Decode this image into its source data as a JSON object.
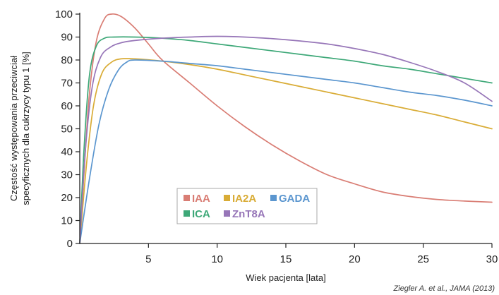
{
  "chart_data": {
    "type": "line",
    "title": "",
    "xlabel": "Wiek pacjenta [lata]",
    "ylabel_lines": [
      "Częstość występowania przeciwciał",
      "specyficznych dla cukrzycy typu 1 [%]"
    ],
    "xlim": [
      0,
      30
    ],
    "ylim": [
      0,
      100
    ],
    "x_ticks": [
      5,
      10,
      15,
      20,
      25,
      30
    ],
    "y_ticks": [
      0,
      10,
      20,
      30,
      40,
      50,
      60,
      70,
      80,
      90,
      100
    ],
    "grid": false,
    "legend_position": "lower-left-center",
    "source": "Ziegler A. et al., JAMA (2013)",
    "series": [
      {
        "name": "IAA",
        "color": "#d97d74",
        "points": [
          [
            0,
            0
          ],
          [
            0.3,
            30
          ],
          [
            0.7,
            65
          ],
          [
            1.2,
            88
          ],
          [
            1.8,
            98
          ],
          [
            2.3,
            100
          ],
          [
            3,
            99
          ],
          [
            4,
            94
          ],
          [
            5,
            87
          ],
          [
            6,
            80
          ],
          [
            8,
            70
          ],
          [
            10,
            60
          ],
          [
            12,
            51
          ],
          [
            14,
            43
          ],
          [
            16,
            36
          ],
          [
            18,
            30
          ],
          [
            20,
            26
          ],
          [
            22,
            22.5
          ],
          [
            24,
            20.5
          ],
          [
            26,
            19.2
          ],
          [
            28,
            18.5
          ],
          [
            30,
            18
          ]
        ]
      },
      {
        "name": "IA2A",
        "color": "#d9ac36",
        "points": [
          [
            0,
            0
          ],
          [
            0.5,
            35
          ],
          [
            1,
            60
          ],
          [
            1.6,
            74
          ],
          [
            2.3,
            79
          ],
          [
            3,
            80.5
          ],
          [
            4,
            80.5
          ],
          [
            6,
            79.5
          ],
          [
            8,
            78
          ],
          [
            10,
            76
          ],
          [
            12,
            73.5
          ],
          [
            14,
            71
          ],
          [
            16,
            68.5
          ],
          [
            18,
            66
          ],
          [
            20,
            63.5
          ],
          [
            22,
            61
          ],
          [
            24,
            58.5
          ],
          [
            26,
            56
          ],
          [
            28,
            53
          ],
          [
            30,
            50
          ]
        ]
      },
      {
        "name": "GADA",
        "color": "#5b96cf",
        "points": [
          [
            0,
            0
          ],
          [
            0.7,
            28
          ],
          [
            1.4,
            52
          ],
          [
            2.1,
            67
          ],
          [
            2.8,
            75.5
          ],
          [
            3.4,
            79
          ],
          [
            4,
            80
          ],
          [
            6,
            79.5
          ],
          [
            8,
            78.5
          ],
          [
            10,
            77.5
          ],
          [
            12,
            76
          ],
          [
            14,
            74.5
          ],
          [
            16,
            73
          ],
          [
            18,
            71.5
          ],
          [
            20,
            70
          ],
          [
            22,
            68
          ],
          [
            24,
            66
          ],
          [
            26,
            64.5
          ],
          [
            28,
            62.5
          ],
          [
            30,
            60
          ]
        ]
      },
      {
        "name": "ICA",
        "color": "#3ea878",
        "points": [
          [
            0,
            0
          ],
          [
            0.3,
            40
          ],
          [
            0.7,
            73
          ],
          [
            1.2,
            86
          ],
          [
            1.8,
            89.5
          ],
          [
            2.5,
            90
          ],
          [
            4,
            90
          ],
          [
            6,
            89.5
          ],
          [
            8,
            88.5
          ],
          [
            10,
            87
          ],
          [
            12,
            85.5
          ],
          [
            14,
            84
          ],
          [
            16,
            82.5
          ],
          [
            18,
            81
          ],
          [
            20,
            79.5
          ],
          [
            22,
            77.5
          ],
          [
            24,
            76
          ],
          [
            26,
            74
          ],
          [
            28,
            72
          ],
          [
            30,
            70
          ]
        ]
      },
      {
        "name": "ZnT8A",
        "color": "#9776b8",
        "points": [
          [
            0,
            0
          ],
          [
            0.4,
            40
          ],
          [
            0.9,
            68
          ],
          [
            1.5,
            81
          ],
          [
            2.2,
            85.5
          ],
          [
            3,
            87.5
          ],
          [
            4,
            88.5
          ],
          [
            6,
            89.5
          ],
          [
            8,
            90
          ],
          [
            10,
            90.3
          ],
          [
            12,
            90
          ],
          [
            14,
            89.3
          ],
          [
            16,
            88.3
          ],
          [
            18,
            87
          ],
          [
            20,
            85
          ],
          [
            22,
            82.5
          ],
          [
            24,
            79
          ],
          [
            26,
            75
          ],
          [
            28,
            70
          ],
          [
            30,
            62
          ]
        ]
      }
    ]
  }
}
